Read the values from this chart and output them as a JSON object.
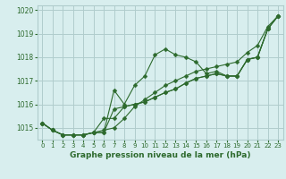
{
  "title": "Graphe pression niveau de la mer (hPa)",
  "bg_color": "#d8eeee",
  "grid_color": "#b0cccc",
  "line_color": "#2d6a2d",
  "ylabel_min": 1014.5,
  "ylabel_max": 1020.2,
  "yticks": [
    1015,
    1016,
    1017,
    1018,
    1019,
    1020
  ],
  "xticks": [
    0,
    1,
    2,
    3,
    4,
    5,
    6,
    7,
    8,
    9,
    10,
    11,
    12,
    13,
    14,
    15,
    16,
    17,
    18,
    19,
    20,
    21,
    22,
    23
  ],
  "series": [
    [
      1015.2,
      1014.9,
      1014.7,
      1014.7,
      1014.7,
      1014.8,
      1014.8,
      1016.6,
      1016.0,
      1016.8,
      1017.2,
      1018.1,
      1018.35,
      1018.1,
      1018.0,
      1017.8,
      1017.3,
      1017.4,
      1017.2,
      1017.2,
      1017.9,
      1018.0,
      1019.2,
      1019.75
    ],
    [
      1015.2,
      1014.9,
      1014.7,
      1014.7,
      1014.7,
      1014.8,
      1014.8,
      1015.8,
      1015.9,
      1016.0,
      1016.1,
      1016.3,
      1016.5,
      1016.65,
      1016.9,
      1017.1,
      1017.2,
      1017.3,
      1017.2,
      1017.2,
      1017.9,
      1018.0,
      1019.2,
      1019.75
    ],
    [
      1015.2,
      1014.9,
      1014.7,
      1014.7,
      1014.7,
      1014.8,
      1015.4,
      1015.4,
      1015.9,
      1016.0,
      1016.1,
      1016.3,
      1016.5,
      1016.65,
      1016.9,
      1017.1,
      1017.2,
      1017.3,
      1017.2,
      1017.2,
      1017.9,
      1018.0,
      1019.2,
      1019.75
    ],
    [
      1015.2,
      1014.9,
      1014.7,
      1014.7,
      1014.7,
      1014.8,
      1014.9,
      1015.0,
      1015.4,
      1015.9,
      1016.2,
      1016.5,
      1016.8,
      1017.0,
      1017.2,
      1017.4,
      1017.5,
      1017.6,
      1017.7,
      1017.8,
      1018.2,
      1018.5,
      1019.3,
      1019.75
    ]
  ]
}
